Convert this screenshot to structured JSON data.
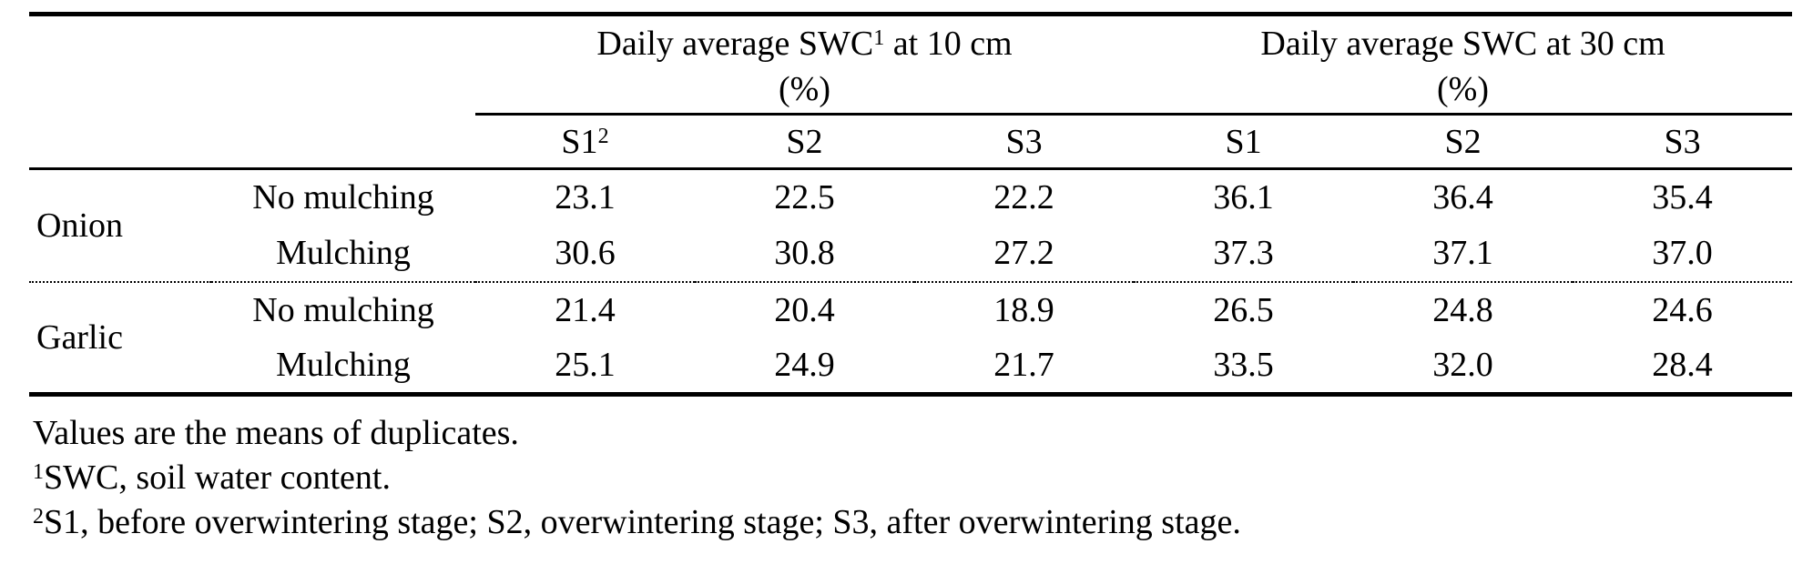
{
  "table": {
    "group_headers": [
      {
        "text": "Daily average SWC",
        "sup": "1",
        "text_after": " at 10 cm",
        "unit": "(%)"
      },
      {
        "text": "Daily average SWC at 30 cm",
        "sup": "",
        "text_after": "",
        "unit": "(%)"
      }
    ],
    "stage_headers": [
      {
        "text": "S1",
        "sup": "2"
      },
      {
        "text": "S2",
        "sup": ""
      },
      {
        "text": "S3",
        "sup": ""
      },
      {
        "text": "S1",
        "sup": ""
      },
      {
        "text": "S2",
        "sup": ""
      },
      {
        "text": "S3",
        "sup": ""
      }
    ],
    "rows": [
      {
        "crop": "Onion",
        "treatment": "No mulching",
        "values": [
          "23.1",
          "22.5",
          "22.2",
          "36.1",
          "36.4",
          "35.4"
        ]
      },
      {
        "crop": "",
        "treatment": "Mulching",
        "values": [
          "30.6",
          "30.8",
          "27.2",
          "37.3",
          "37.1",
          "37.0"
        ]
      },
      {
        "crop": "Garlic",
        "treatment": "No mulching",
        "values": [
          "21.4",
          "20.4",
          "18.9",
          "26.5",
          "24.8",
          "24.6"
        ]
      },
      {
        "crop": "",
        "treatment": "Mulching",
        "values": [
          "25.1",
          "24.9",
          "21.7",
          "33.5",
          "32.0",
          "28.4"
        ]
      }
    ],
    "footnotes": [
      {
        "sup": "",
        "text": "Values are the means of duplicates."
      },
      {
        "sup": "1",
        "text": "SWC, soil water content."
      },
      {
        "sup": "2",
        "text": "S1, before overwintering stage; S2, overwintering stage; S3, after overwintering stage."
      }
    ]
  }
}
